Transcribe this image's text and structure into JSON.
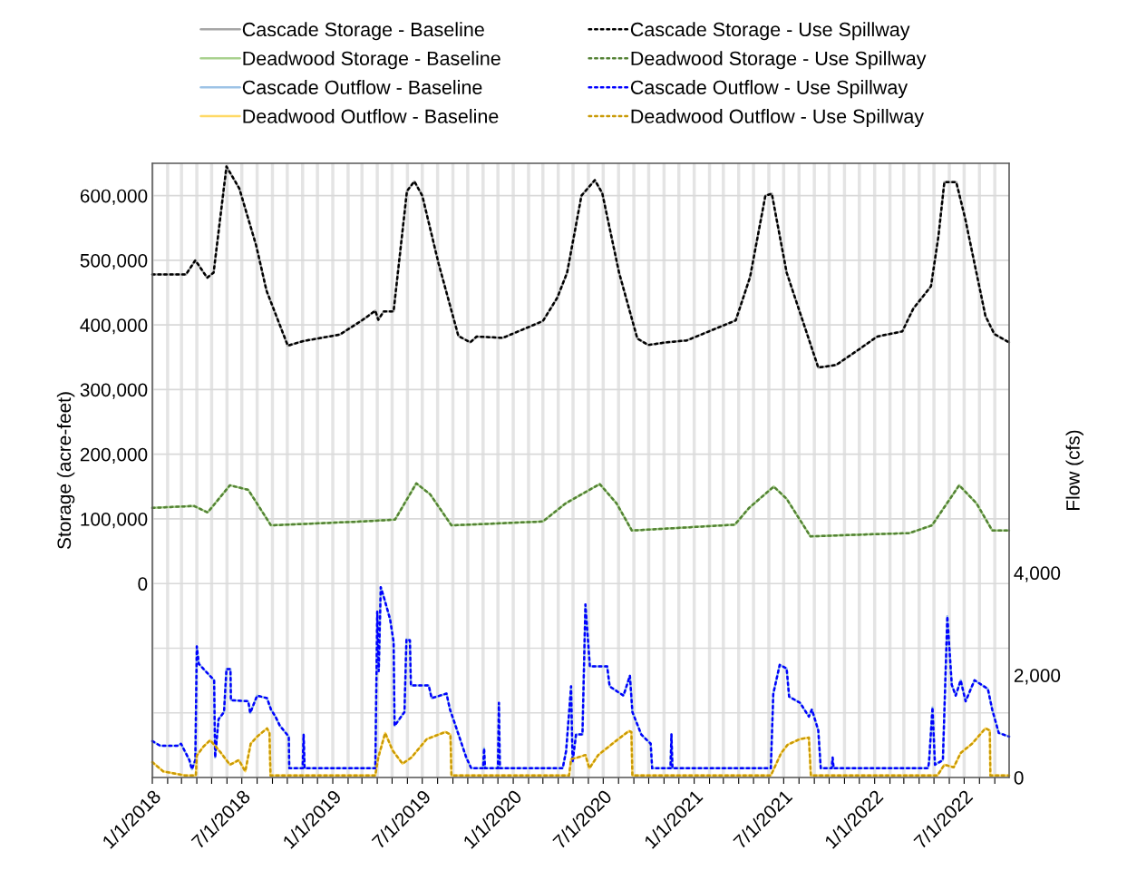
{
  "chart_data": {
    "type": "line",
    "ylabel": "Storage (acre-feet)",
    "y2label": "Flow (cfs)",
    "xlim": [
      "2018-01-01",
      "2022-09-30"
    ],
    "xticks": [
      {
        "value": "2018-01-01",
        "label": "1/1/2018"
      },
      {
        "value": "2018-02-01",
        "label": null
      },
      {
        "value": "2018-03-01",
        "label": null
      },
      {
        "value": "2018-04-01",
        "label": null
      },
      {
        "value": "2018-05-01",
        "label": null
      },
      {
        "value": "2018-06-01",
        "label": null
      },
      {
        "value": "2018-07-01",
        "label": "7/1/2018"
      },
      {
        "value": "2018-08-01",
        "label": null
      },
      {
        "value": "2018-09-01",
        "label": null
      },
      {
        "value": "2018-10-01",
        "label": null
      },
      {
        "value": "2018-11-01",
        "label": null
      },
      {
        "value": "2018-12-01",
        "label": null
      },
      {
        "value": "2019-01-01",
        "label": "1/1/2019"
      },
      {
        "value": "2019-02-01",
        "label": null
      },
      {
        "value": "2019-03-01",
        "label": null
      },
      {
        "value": "2019-04-01",
        "label": null
      },
      {
        "value": "2019-05-01",
        "label": null
      },
      {
        "value": "2019-06-01",
        "label": null
      },
      {
        "value": "2019-07-01",
        "label": "7/1/2019"
      },
      {
        "value": "2019-08-01",
        "label": null
      },
      {
        "value": "2019-09-01",
        "label": null
      },
      {
        "value": "2019-10-01",
        "label": null
      },
      {
        "value": "2019-11-01",
        "label": null
      },
      {
        "value": "2019-12-01",
        "label": null
      },
      {
        "value": "2020-01-01",
        "label": "1/1/2020"
      },
      {
        "value": "2020-02-01",
        "label": null
      },
      {
        "value": "2020-03-01",
        "label": null
      },
      {
        "value": "2020-04-01",
        "label": null
      },
      {
        "value": "2020-05-01",
        "label": null
      },
      {
        "value": "2020-06-01",
        "label": null
      },
      {
        "value": "2020-07-01",
        "label": "7/1/2020"
      },
      {
        "value": "2020-08-01",
        "label": null
      },
      {
        "value": "2020-09-01",
        "label": null
      },
      {
        "value": "2020-10-01",
        "label": null
      },
      {
        "value": "2020-11-01",
        "label": null
      },
      {
        "value": "2020-12-01",
        "label": null
      },
      {
        "value": "2021-01-01",
        "label": "1/1/2021"
      },
      {
        "value": "2021-02-01",
        "label": null
      },
      {
        "value": "2021-03-01",
        "label": null
      },
      {
        "value": "2021-04-01",
        "label": null
      },
      {
        "value": "2021-05-01",
        "label": null
      },
      {
        "value": "2021-06-01",
        "label": null
      },
      {
        "value": "2021-07-01",
        "label": "7/1/2021"
      },
      {
        "value": "2021-08-01",
        "label": null
      },
      {
        "value": "2021-09-01",
        "label": null
      },
      {
        "value": "2021-10-01",
        "label": null
      },
      {
        "value": "2021-11-01",
        "label": null
      },
      {
        "value": "2021-12-01",
        "label": null
      },
      {
        "value": "2022-01-01",
        "label": "1/1/2022"
      },
      {
        "value": "2022-02-01",
        "label": null
      },
      {
        "value": "2022-03-01",
        "label": null
      },
      {
        "value": "2022-04-01",
        "label": null
      },
      {
        "value": "2022-05-01",
        "label": null
      },
      {
        "value": "2022-06-01",
        "label": null
      },
      {
        "value": "2022-07-01",
        "label": "7/1/2022"
      },
      {
        "value": "2022-08-01",
        "label": null
      },
      {
        "value": "2022-09-01",
        "label": null
      }
    ],
    "ylim": [
      -300000,
      650000
    ],
    "yticks": [
      {
        "value": -300000,
        "label": null
      },
      {
        "value": -200000,
        "label": null
      },
      {
        "value": -100000,
        "label": null
      },
      {
        "value": 0,
        "label": "0"
      },
      {
        "value": 100000,
        "label": "100,000"
      },
      {
        "value": 200000,
        "label": "200,000"
      },
      {
        "value": 300000,
        "label": "300,000"
      },
      {
        "value": 400000,
        "label": "400,000"
      },
      {
        "value": 500000,
        "label": "500,000"
      },
      {
        "value": 600000,
        "label": "600,000"
      }
    ],
    "y2lim": [
      0,
      12000
    ],
    "y2ticks": [
      {
        "value": 0,
        "label": "0"
      },
      {
        "value": 2000,
        "label": "2,000"
      },
      {
        "value": 4000,
        "label": "4,000"
      }
    ],
    "grid": true,
    "legend": "top",
    "series": [
      {
        "name": "Cascade Storage - Baseline",
        "color": "#a6a6a6",
        "line_style": "solid",
        "x": [
          "2018-01-01",
          "2018-03-10",
          "2018-03-29",
          "2018-04-22",
          "2018-05-05",
          "2018-05-31",
          "2018-06-26",
          "2018-07-30",
          "2018-08-20",
          "2018-10-02",
          "2018-11-02",
          "2019-01-15",
          "2019-03-01",
          "2019-03-28",
          "2019-04-03",
          "2019-04-14",
          "2019-05-04",
          "2019-05-31",
          "2019-06-15",
          "2019-07-01",
          "2019-08-03",
          "2019-09-12",
          "2019-10-06",
          "2019-10-19",
          "2019-12-11",
          "2020-02-02",
          "2020-03-01",
          "2020-03-30",
          "2020-04-19",
          "2020-05-18",
          "2020-06-14",
          "2020-06-29",
          "2020-08-02",
          "2020-09-08",
          "2020-09-30",
          "2020-11-05",
          "2020-12-17",
          "2021-03-26",
          "2021-04-24",
          "2021-05-25",
          "2021-06-07",
          "2021-07-07",
          "2021-09-09",
          "2021-10-15",
          "2021-11-30",
          "2022-01-06",
          "2022-02-26",
          "2022-03-20",
          "2022-04-25",
          "2022-05-10",
          "2022-05-22",
          "2022-06-15",
          "2022-07-03",
          "2022-08-13",
          "2022-08-31",
          "2022-09-30"
        ],
        "values": [
          478000,
          478000,
          500000,
          473000,
          481000,
          645000,
          611000,
          523000,
          453000,
          368000,
          375000,
          385000,
          407000,
          422000,
          408000,
          421000,
          421000,
          607000,
          622000,
          600000,
          495000,
          383000,
          373000,
          382000,
          380000,
          397000,
          406000,
          442000,
          481000,
          600000,
          624000,
          604000,
          481000,
          379000,
          369000,
          373000,
          376000,
          407000,
          474000,
          600000,
          603000,
          481000,
          334000,
          338000,
          362000,
          382000,
          390000,
          425000,
          460000,
          537000,
          621000,
          621000,
          565000,
          414000,
          386000,
          373000
        ]
      },
      {
        "name": "Deadwood Storage - Baseline",
        "color": "#a9d18e",
        "line_style": "solid",
        "x": [
          "2018-01-01",
          "2018-03-26",
          "2018-04-23",
          "2018-06-07",
          "2018-07-14",
          "2018-08-29",
          "2019-03-01",
          "2019-04-17",
          "2019-05-07",
          "2019-06-19",
          "2019-07-17",
          "2019-08-29",
          "2020-03-01",
          "2020-04-16",
          "2020-06-24",
          "2020-07-28",
          "2020-08-28",
          "2021-03-24",
          "2021-04-22",
          "2021-06-11",
          "2021-07-07",
          "2021-08-24",
          "2021-12-17",
          "2022-03-12",
          "2022-04-27",
          "2022-06-21",
          "2022-07-26",
          "2022-08-27",
          "2022-09-30"
        ],
        "values": [
          117000,
          120000,
          110000,
          152000,
          145000,
          90000,
          96000,
          98000,
          99000,
          155000,
          138000,
          90000,
          96000,
          124000,
          154000,
          124000,
          82000,
          91000,
          117000,
          150000,
          131000,
          73000,
          76000,
          78000,
          90000,
          152000,
          124000,
          82000,
          82000
        ]
      },
      {
        "name": "Cascade Outflow - Baseline",
        "color": "#9dc3e6",
        "line_style": "solid",
        "axis": "y2",
        "x": [
          "2018-01-01",
          "2018-01-17",
          "2018-02-21",
          "2018-02-28",
          "2018-03-17",
          "2018-03-22",
          "2018-03-29",
          "2018-04-01",
          "2018-04-05",
          "2018-05-06",
          "2018-05-08",
          "2018-05-15",
          "2018-05-26",
          "2018-05-31",
          "2018-06-08",
          "2018-06-09",
          "2018-07-14",
          "2018-07-18",
          "2018-08-01",
          "2018-08-21",
          "2018-08-29",
          "2018-09-07",
          "2018-09-16",
          "2018-10-04",
          "2018-10-05",
          "2018-11-01",
          "2018-11-03",
          "2018-11-05",
          "2019-03-28",
          "2019-04-01",
          "2019-04-04",
          "2019-04-08",
          "2019-04-15",
          "2019-04-27",
          "2019-05-04",
          "2019-05-06",
          "2019-05-26",
          "2019-05-30",
          "2019-06-06",
          "2019-06-08",
          "2019-07-14",
          "2019-07-20",
          "2019-08-19",
          "2019-08-26",
          "2019-09-05",
          "2019-09-28",
          "2019-10-08",
          "2019-11-01",
          "2019-11-03",
          "2019-11-05",
          "2019-12-01",
          "2019-12-03",
          "2019-12-05",
          "2020-04-10",
          "2020-04-17",
          "2020-04-27",
          "2020-04-30",
          "2020-05-07",
          "2020-05-20",
          "2020-05-26",
          "2020-06-04",
          "2020-07-09",
          "2020-07-14",
          "2020-08-11",
          "2020-08-24",
          "2020-08-29",
          "2020-09-16",
          "2020-10-05",
          "2020-10-08",
          "2020-11-14",
          "2020-11-16",
          "2020-11-18",
          "2021-06-05",
          "2021-06-10",
          "2021-06-23",
          "2021-07-07",
          "2021-07-12",
          "2021-08-03",
          "2021-08-21",
          "2021-08-27",
          "2021-09-09",
          "2021-09-14",
          "2021-10-06",
          "2021-10-08",
          "2021-10-10",
          "2022-04-19",
          "2022-04-21",
          "2022-04-28",
          "2022-05-03",
          "2022-05-19",
          "2022-05-28",
          "2022-06-06",
          "2022-06-14",
          "2022-06-24",
          "2022-07-04",
          "2022-07-22",
          "2022-08-18",
          "2022-08-27",
          "2022-09-09",
          "2022-09-30"
        ],
        "values": [
          710,
          620,
          620,
          660,
          340,
          160,
          340,
          2560,
          2220,
          1900,
          390,
          1140,
          1280,
          2120,
          2120,
          1510,
          1490,
          1260,
          1600,
          1550,
          1330,
          1190,
          1010,
          800,
          180,
          180,
          840,
          180,
          180,
          3240,
          2080,
          3720,
          3500,
          3090,
          2650,
          1010,
          1280,
          2700,
          2680,
          1800,
          1800,
          1550,
          1640,
          1330,
          1050,
          390,
          180,
          180,
          570,
          180,
          180,
          1460,
          180,
          180,
          520,
          1780,
          300,
          840,
          840,
          3380,
          2170,
          2170,
          1780,
          1600,
          1990,
          1280,
          840,
          660,
          180,
          180,
          840,
          180,
          180,
          1640,
          2200,
          2130,
          1580,
          1460,
          1190,
          1330,
          920,
          180,
          180,
          390,
          180,
          180,
          300,
          1370,
          250,
          340,
          3150,
          1810,
          1600,
          1900,
          1490,
          1900,
          1730,
          1320,
          870,
          800
        ]
      },
      {
        "name": "Deadwood Outflow - Baseline",
        "color": "#ffd966",
        "line_style": "solid",
        "axis": "y2",
        "x": [
          "2018-01-01",
          "2018-01-23",
          "2018-03-08",
          "2018-03-30",
          "2018-04-01",
          "2018-04-14",
          "2018-04-28",
          "2018-05-20",
          "2018-06-07",
          "2018-06-25",
          "2018-07-08",
          "2018-07-19",
          "2018-08-01",
          "2018-08-21",
          "2018-08-26",
          "2018-08-28",
          "2019-03-28",
          "2019-04-03",
          "2019-04-17",
          "2019-05-02",
          "2019-05-22",
          "2019-06-09",
          "2019-07-10",
          "2019-08-17",
          "2019-08-27",
          "2019-08-29",
          "2020-04-23",
          "2020-04-27",
          "2020-05-10",
          "2020-05-26",
          "2020-06-03",
          "2020-06-21",
          "2020-07-26",
          "2020-08-22",
          "2020-08-27",
          "2020-08-29",
          "2021-06-05",
          "2021-06-26",
          "2021-07-09",
          "2021-08-03",
          "2021-08-21",
          "2021-08-25",
          "2022-05-08",
          "2022-05-22",
          "2022-06-10",
          "2022-06-24",
          "2022-07-17",
          "2022-08-13",
          "2022-08-22",
          "2022-08-23",
          "2022-09-30"
        ],
        "values": [
          300,
          120,
          40,
          40,
          430,
          600,
          730,
          480,
          250,
          340,
          120,
          660,
          800,
          960,
          870,
          40,
          40,
          390,
          870,
          530,
          270,
          390,
          750,
          890,
          840,
          40,
          40,
          360,
          390,
          440,
          180,
          440,
          710,
          910,
          890,
          40,
          40,
          480,
          640,
          750,
          780,
          40,
          40,
          250,
          200,
          480,
          660,
          960,
          920,
          40,
          40
        ]
      },
      {
        "name": "Cascade Storage - Use Spillway",
        "color": "#000000",
        "line_style": "dotted",
        "x": [
          "2018-01-01",
          "2018-03-10",
          "2018-03-29",
          "2018-04-22",
          "2018-05-05",
          "2018-05-31",
          "2018-06-26",
          "2018-07-30",
          "2018-08-20",
          "2018-10-02",
          "2018-11-02",
          "2019-01-15",
          "2019-03-01",
          "2019-03-28",
          "2019-04-03",
          "2019-04-14",
          "2019-05-04",
          "2019-05-31",
          "2019-06-15",
          "2019-07-01",
          "2019-08-03",
          "2019-09-12",
          "2019-10-06",
          "2019-10-19",
          "2019-12-11",
          "2020-02-02",
          "2020-03-01",
          "2020-03-30",
          "2020-04-19",
          "2020-05-18",
          "2020-06-14",
          "2020-06-29",
          "2020-08-02",
          "2020-09-08",
          "2020-09-30",
          "2020-11-05",
          "2020-12-17",
          "2021-03-26",
          "2021-04-24",
          "2021-05-25",
          "2021-06-07",
          "2021-07-07",
          "2021-09-09",
          "2021-10-15",
          "2021-11-30",
          "2022-01-06",
          "2022-02-26",
          "2022-03-20",
          "2022-04-25",
          "2022-05-10",
          "2022-05-22",
          "2022-06-15",
          "2022-07-03",
          "2022-08-13",
          "2022-08-31",
          "2022-09-30"
        ],
        "values": [
          478000,
          478000,
          500000,
          473000,
          481000,
          645000,
          611000,
          523000,
          453000,
          368000,
          375000,
          385000,
          407000,
          422000,
          408000,
          421000,
          421000,
          607000,
          622000,
          600000,
          495000,
          383000,
          373000,
          382000,
          380000,
          397000,
          406000,
          442000,
          481000,
          600000,
          624000,
          604000,
          481000,
          379000,
          369000,
          373000,
          376000,
          407000,
          474000,
          600000,
          603000,
          481000,
          334000,
          338000,
          362000,
          382000,
          390000,
          425000,
          460000,
          537000,
          621000,
          621000,
          565000,
          414000,
          386000,
          373000
        ]
      },
      {
        "name": "Deadwood Storage - Use Spillway",
        "color": "#548235",
        "line_style": "dotted",
        "x": [
          "2018-01-01",
          "2018-03-26",
          "2018-04-23",
          "2018-06-07",
          "2018-07-14",
          "2018-08-29",
          "2019-03-01",
          "2019-04-17",
          "2019-05-07",
          "2019-06-19",
          "2019-07-17",
          "2019-08-29",
          "2020-03-01",
          "2020-04-16",
          "2020-06-24",
          "2020-07-28",
          "2020-08-28",
          "2021-03-24",
          "2021-04-22",
          "2021-06-11",
          "2021-07-07",
          "2021-08-24",
          "2021-12-17",
          "2022-03-12",
          "2022-04-27",
          "2022-06-21",
          "2022-07-26",
          "2022-08-27",
          "2022-09-30"
        ],
        "values": [
          117000,
          120000,
          110000,
          152000,
          145000,
          90000,
          96000,
          98000,
          99000,
          155000,
          138000,
          90000,
          96000,
          124000,
          154000,
          124000,
          82000,
          91000,
          117000,
          150000,
          131000,
          73000,
          76000,
          78000,
          90000,
          152000,
          124000,
          82000,
          82000
        ]
      },
      {
        "name": "Cascade Outflow - Use Spillway",
        "color": "#0000ff",
        "line_style": "dotted",
        "axis": "y2",
        "x": [
          "2018-01-01",
          "2018-01-17",
          "2018-02-21",
          "2018-02-28",
          "2018-03-17",
          "2018-03-22",
          "2018-03-29",
          "2018-04-01",
          "2018-04-05",
          "2018-05-06",
          "2018-05-08",
          "2018-05-15",
          "2018-05-26",
          "2018-05-31",
          "2018-06-08",
          "2018-06-09",
          "2018-07-14",
          "2018-07-18",
          "2018-08-01",
          "2018-08-21",
          "2018-08-29",
          "2018-09-07",
          "2018-09-16",
          "2018-10-04",
          "2018-10-05",
          "2018-11-01",
          "2018-11-03",
          "2018-11-05",
          "2019-03-28",
          "2019-04-01",
          "2019-04-04",
          "2019-04-08",
          "2019-04-15",
          "2019-04-27",
          "2019-05-04",
          "2019-05-06",
          "2019-05-26",
          "2019-05-30",
          "2019-06-06",
          "2019-06-08",
          "2019-07-14",
          "2019-07-20",
          "2019-08-19",
          "2019-08-26",
          "2019-09-05",
          "2019-09-28",
          "2019-10-08",
          "2019-11-01",
          "2019-11-03",
          "2019-11-05",
          "2019-12-01",
          "2019-12-03",
          "2019-12-05",
          "2020-04-10",
          "2020-04-17",
          "2020-04-27",
          "2020-04-30",
          "2020-05-07",
          "2020-05-20",
          "2020-05-26",
          "2020-06-04",
          "2020-07-09",
          "2020-07-14",
          "2020-08-11",
          "2020-08-24",
          "2020-08-29",
          "2020-09-16",
          "2020-10-05",
          "2020-10-08",
          "2020-11-14",
          "2020-11-16",
          "2020-11-18",
          "2021-06-05",
          "2021-06-10",
          "2021-06-23",
          "2021-07-07",
          "2021-07-12",
          "2021-08-03",
          "2021-08-21",
          "2021-08-27",
          "2021-09-09",
          "2021-09-14",
          "2021-10-06",
          "2021-10-08",
          "2021-10-10",
          "2022-04-19",
          "2022-04-21",
          "2022-04-28",
          "2022-05-03",
          "2022-05-19",
          "2022-05-28",
          "2022-06-06",
          "2022-06-14",
          "2022-06-24",
          "2022-07-04",
          "2022-07-22",
          "2022-08-18",
          "2022-08-27",
          "2022-09-09",
          "2022-09-30"
        ],
        "values": [
          710,
          620,
          620,
          660,
          340,
          160,
          340,
          2560,
          2220,
          1900,
          390,
          1140,
          1280,
          2120,
          2120,
          1510,
          1490,
          1260,
          1600,
          1550,
          1330,
          1190,
          1010,
          800,
          180,
          180,
          840,
          180,
          180,
          3240,
          2080,
          3720,
          3500,
          3090,
          2650,
          1010,
          1280,
          2700,
          2680,
          1800,
          1800,
          1550,
          1640,
          1330,
          1050,
          390,
          180,
          180,
          570,
          180,
          180,
          1460,
          180,
          180,
          520,
          1780,
          300,
          840,
          840,
          3380,
          2170,
          2170,
          1780,
          1600,
          1990,
          1280,
          840,
          660,
          180,
          180,
          840,
          180,
          180,
          1640,
          2200,
          2130,
          1580,
          1460,
          1190,
          1330,
          920,
          180,
          180,
          390,
          180,
          180,
          300,
          1370,
          250,
          340,
          3150,
          1810,
          1600,
          1900,
          1490,
          1900,
          1730,
          1320,
          870,
          800
        ]
      },
      {
        "name": "Deadwood Outflow - Use Spillway",
        "color": "#c99a06",
        "line_style": "dotted",
        "axis": "y2",
        "x": [
          "2018-01-01",
          "2018-01-23",
          "2018-03-08",
          "2018-03-30",
          "2018-04-01",
          "2018-04-14",
          "2018-04-28",
          "2018-05-20",
          "2018-06-07",
          "2018-06-25",
          "2018-07-08",
          "2018-07-19",
          "2018-08-01",
          "2018-08-21",
          "2018-08-26",
          "2018-08-28",
          "2019-03-28",
          "2019-04-03",
          "2019-04-17",
          "2019-05-02",
          "2019-05-22",
          "2019-06-09",
          "2019-07-10",
          "2019-08-17",
          "2019-08-27",
          "2019-08-29",
          "2020-04-23",
          "2020-04-27",
          "2020-05-10",
          "2020-05-26",
          "2020-06-03",
          "2020-06-21",
          "2020-07-26",
          "2020-08-22",
          "2020-08-27",
          "2020-08-29",
          "2021-06-05",
          "2021-06-26",
          "2021-07-09",
          "2021-08-03",
          "2021-08-21",
          "2021-08-25",
          "2022-05-08",
          "2022-05-22",
          "2022-06-10",
          "2022-06-24",
          "2022-07-17",
          "2022-08-13",
          "2022-08-22",
          "2022-08-23",
          "2022-09-30"
        ],
        "values": [
          300,
          120,
          40,
          40,
          430,
          600,
          730,
          480,
          250,
          340,
          120,
          660,
          800,
          960,
          870,
          40,
          40,
          390,
          870,
          530,
          270,
          390,
          750,
          890,
          840,
          40,
          40,
          360,
          390,
          440,
          180,
          440,
          710,
          910,
          890,
          40,
          40,
          480,
          640,
          750,
          780,
          40,
          40,
          250,
          200,
          480,
          660,
          960,
          920,
          40,
          40
        ]
      }
    ]
  }
}
